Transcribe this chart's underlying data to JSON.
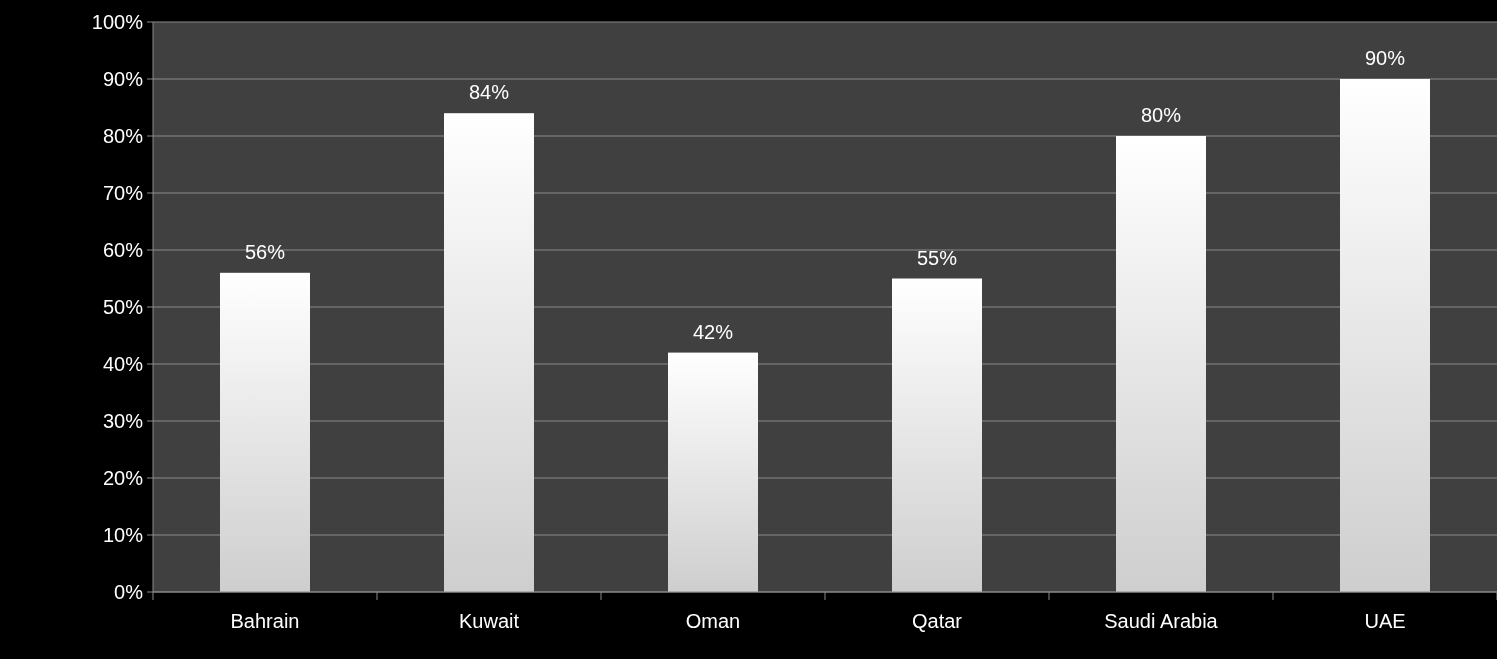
{
  "chart_data": {
    "type": "bar",
    "categories": [
      "Bahrain",
      "Kuwait",
      "Oman",
      "Qatar",
      "Saudi Arabia",
      "UAE"
    ],
    "values": [
      56,
      84,
      42,
      55,
      80,
      90
    ],
    "value_labels": [
      "56%",
      "84%",
      "42%",
      "55%",
      "80%",
      "90%"
    ],
    "color": "#ffffff",
    "ylim": [
      0,
      100
    ],
    "yticks": [
      {
        "value": 0,
        "label": "0%"
      },
      {
        "value": 10,
        "label": "10%"
      },
      {
        "value": 20,
        "label": "20%"
      },
      {
        "value": 30,
        "label": "30%"
      },
      {
        "value": 40,
        "label": "40%"
      },
      {
        "value": 50,
        "label": "50%"
      },
      {
        "value": 60,
        "label": "60%"
      },
      {
        "value": 70,
        "label": "70%"
      },
      {
        "value": 80,
        "label": "80%"
      },
      {
        "value": 90,
        "label": "90%"
      },
      {
        "value": 100,
        "label": "100%"
      }
    ],
    "grid": "y"
  }
}
